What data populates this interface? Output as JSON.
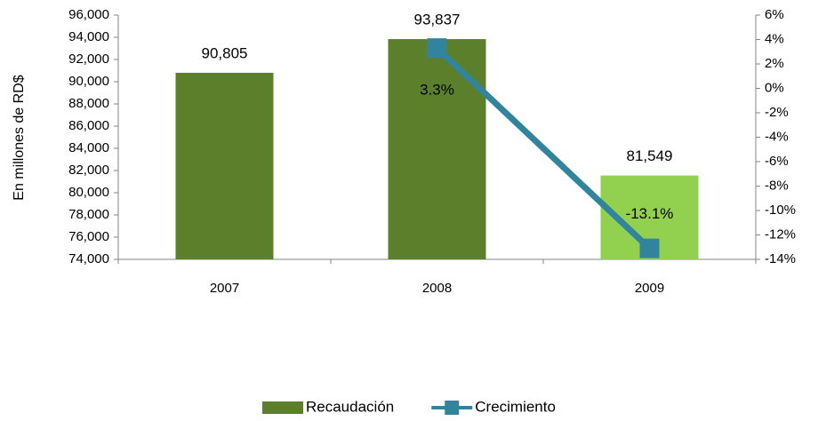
{
  "chart_data": {
    "type": "bar",
    "y_label": "En millones de RD$",
    "categories": [
      "2007",
      "2008",
      "2009"
    ],
    "series": [
      {
        "name": "Recaudación",
        "type": "bar",
        "color": "#5b7f2b",
        "colors": [
          "#5b7f2b",
          "#5b7f2b",
          "#92d050"
        ],
        "values": [
          90805,
          93837,
          81549
        ],
        "value_labels": [
          "90,805",
          "93,837",
          "81,549"
        ]
      },
      {
        "name": "Crecimiento",
        "type": "line",
        "axis": "y2",
        "color": "#31849b",
        "values": [
          null,
          3.3,
          -13.1
        ],
        "value_labels": [
          null,
          "3.3%",
          "-13.1%"
        ]
      }
    ],
    "ylim": [
      74000,
      96000
    ],
    "yticks": [
      {
        "value": 74000,
        "label": "74,000"
      },
      {
        "value": 76000,
        "label": "76,000"
      },
      {
        "value": 78000,
        "label": "78,000"
      },
      {
        "value": 80000,
        "label": "80,000"
      },
      {
        "value": 82000,
        "label": "82,000"
      },
      {
        "value": 84000,
        "label": "84,000"
      },
      {
        "value": 86000,
        "label": "86,000"
      },
      {
        "value": 88000,
        "label": "88,000"
      },
      {
        "value": 90000,
        "label": "90,000"
      },
      {
        "value": 92000,
        "label": "92,000"
      },
      {
        "value": 94000,
        "label": "94,000"
      },
      {
        "value": 96000,
        "label": "96,000"
      }
    ],
    "y2lim": [
      -14,
      6
    ],
    "y2ticks": [
      {
        "value": -14,
        "label": "-14%"
      },
      {
        "value": -12,
        "label": "-12%"
      },
      {
        "value": -10,
        "label": "-10%"
      },
      {
        "value": -8,
        "label": "-8%"
      },
      {
        "value": -6,
        "label": "-6%"
      },
      {
        "value": -4,
        "label": "-4%"
      },
      {
        "value": -2,
        "label": "-2%"
      },
      {
        "value": 0,
        "label": "0%"
      },
      {
        "value": 2,
        "label": "2%"
      },
      {
        "value": 4,
        "label": "4%"
      },
      {
        "value": 6,
        "label": "6%"
      }
    ],
    "legend": "bottom"
  }
}
